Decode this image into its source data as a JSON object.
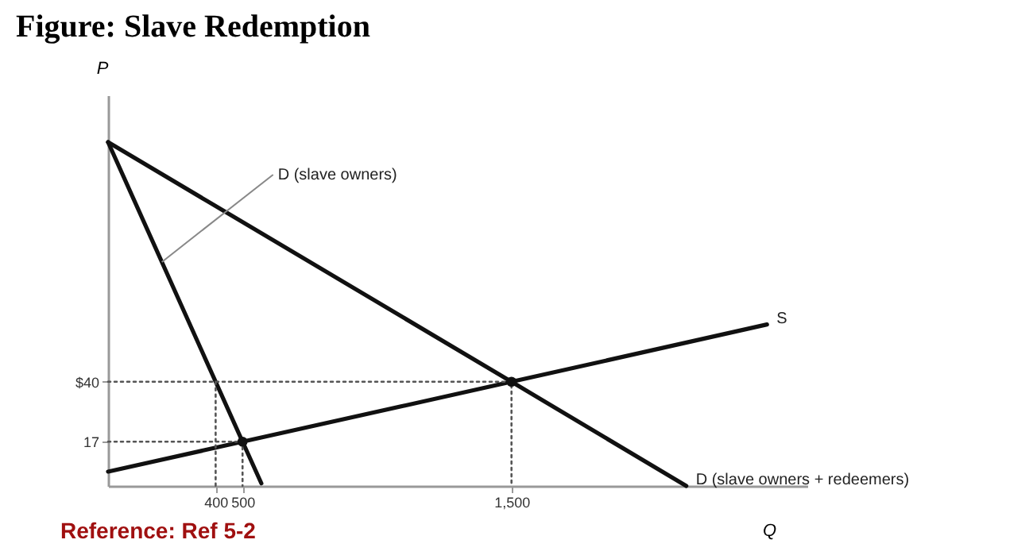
{
  "chart_data": {
    "type": "line",
    "title": "Figure: Slave Redemption",
    "xlabel": "Q",
    "ylabel": "P",
    "xlim": [
      0,
      2600
    ],
    "ylim": [
      0,
      150
    ],
    "xticks": [
      400,
      500,
      {
        "value": 1500,
        "label": "1,500"
      }
    ],
    "yticks": [
      17,
      {
        "value": 40,
        "label": "$40"
      }
    ],
    "grid": false,
    "series": [
      {
        "color": "#111111",
        "line_style": "solid",
        "x": [
          0,
          400,
          500,
          570
        ],
        "values": [
          132,
          40,
          17,
          1
        ]
      },
      {
        "name": "D (slave owners + redeemers)",
        "color": "#111111",
        "line_style": "solid",
        "x": [
          0,
          1500,
          2150
        ],
        "values": [
          132,
          40,
          0
        ]
      },
      {
        "name": "S",
        "color": "#111111",
        "line_style": "solid",
        "x": [
          0,
          500,
          1500,
          2450
        ],
        "values": [
          5.5,
          17,
          40,
          62
        ]
      },
      {
        "color": "#555555",
        "line_style": "dotted",
        "x": [
          0,
          1500,
          1500
        ],
        "values": [
          40,
          40,
          0
        ]
      },
      {
        "color": "#555555",
        "line_style": "dotted",
        "x": [
          0,
          500,
          500
        ],
        "values": [
          17,
          17,
          0
        ]
      },
      {
        "color": "#555555",
        "line_style": "dotted",
        "x": [
          400,
          400
        ],
        "values": [
          40,
          0
        ]
      },
      {
        "type": "scatter",
        "color": "#111111",
        "marker": "circle",
        "x": [
          500,
          1500
        ],
        "values": [
          17,
          40
        ]
      }
    ],
    "annotations": [
      {
        "text": "D (slave owners)",
        "x": 200,
        "y": 86
      },
      "Reference: Ref 5-2"
    ]
  }
}
